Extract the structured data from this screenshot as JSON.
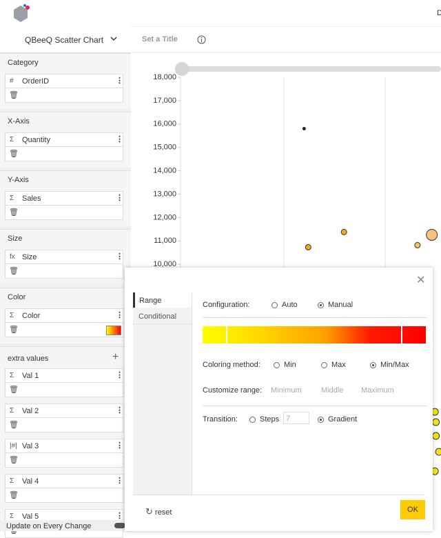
{
  "topbar": {
    "corner_text": "D"
  },
  "sidebar": {
    "chart_name": "QBeeQ Scatter Chart",
    "sections": [
      {
        "title": "Category",
        "fields": [
          {
            "icon": "#",
            "name": "OrderID"
          }
        ]
      },
      {
        "title": "X-Axis",
        "fields": [
          {
            "icon": "Σ",
            "name": "Quantity"
          }
        ]
      },
      {
        "title": "Y-Axis",
        "fields": [
          {
            "icon": "Σ",
            "name": "Sales"
          }
        ]
      },
      {
        "title": "Size",
        "fields": [
          {
            "icon": "fx",
            "name": "Size"
          }
        ]
      },
      {
        "title": "Color",
        "fields": [
          {
            "icon": "Σ",
            "name": "Color"
          }
        ]
      }
    ],
    "extra_title": "extra values",
    "extra_fields": [
      {
        "icon": "Σ",
        "name": "Val 1"
      },
      {
        "icon": "Σ",
        "name": "Val 2"
      },
      {
        "icon": "|#|",
        "name": "Val 3"
      },
      {
        "icon": "Σ",
        "name": "Val 4"
      },
      {
        "icon": "Σ",
        "name": "Val 5"
      }
    ],
    "update_label": "Update on Every Change"
  },
  "toolbar": {
    "title_placeholder": "Set a Title"
  },
  "chart_data": {
    "type": "scatter",
    "ylim": [
      1000,
      18300
    ],
    "yticks": [
      {
        "value": 10000,
        "label": "10,000"
      },
      {
        "value": 11000,
        "label": "11,000"
      },
      {
        "value": 12000,
        "label": "12,000"
      },
      {
        "value": 13000,
        "label": "13,000"
      },
      {
        "value": 14000,
        "label": "14,000"
      },
      {
        "value": 15000,
        "label": "15,000"
      },
      {
        "value": 16000,
        "label": "16,000"
      },
      {
        "value": 17000,
        "label": "17,000"
      },
      {
        "value": 18000,
        "label": "18,000"
      }
    ],
    "xlim": [
      0,
      2.55
    ],
    "x": [
      1.21,
      1.25,
      1.6,
      2.32,
      2.46,
      2.49,
      2.5,
      2.5,
      2.53,
      2.49
    ],
    "y": [
      15800,
      10730,
      11380,
      10820,
      11260,
      3690,
      3250,
      2660,
      1980,
      1150
    ],
    "size": [
      2,
      4,
      4,
      4,
      8,
      5,
      5,
      5,
      5,
      5
    ],
    "colors": [
      "#222222",
      "#f5a623",
      "#f5a623",
      "#f7c260",
      "#f7c280",
      "#f5e21a",
      "#f5e21a",
      "#f5e21a",
      "#f5e21a",
      "#f5e21a"
    ]
  },
  "dialog": {
    "tabs": [
      "Range",
      "Conditional"
    ],
    "configuration": {
      "label": "Configuration:",
      "options": [
        "Auto",
        "Manual"
      ],
      "selected": "Manual"
    },
    "coloring": {
      "label": "Coloring method:",
      "options": [
        "Min",
        "Max",
        "Min/Max"
      ],
      "selected": "Min/Max"
    },
    "range": {
      "label": "Customize range:",
      "placeholders": [
        "Minimum",
        "Middle",
        "Maximum"
      ]
    },
    "transition": {
      "label": "Transition:",
      "options": [
        "Steps",
        "Gradient"
      ],
      "steps": 7,
      "selected": "Gradient"
    },
    "reset": "reset",
    "ok": "OK"
  }
}
